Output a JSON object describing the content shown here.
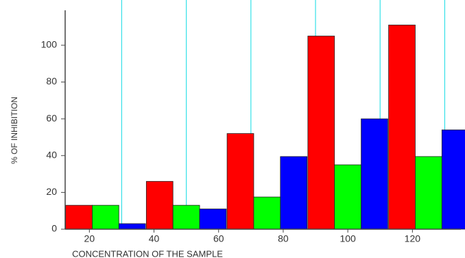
{
  "chart_data": {
    "type": "bar",
    "y_label": "% OF INHIBITION",
    "x_label": "CONCENTRATION OF THE SAMPLE",
    "x": [
      25,
      50,
      75,
      100,
      125
    ],
    "series": [
      {
        "color": "#ff0000",
        "values": [
          13,
          26,
          52,
          105,
          111
        ]
      },
      {
        "color": "#00ff00",
        "values": [
          13,
          13,
          17.5,
          35,
          39.5
        ]
      },
      {
        "color": "#0000ff",
        "values": [
          3,
          11,
          39.5,
          60,
          54
        ]
      }
    ],
    "xlim": [
      12.5,
      135
    ],
    "xticks": [
      20,
      40,
      60,
      80,
      100,
      120
    ],
    "vlines": [
      30,
      50,
      70,
      90,
      110,
      130
    ],
    "vline_color": "#33e0e8",
    "ylim": [
      0,
      119
    ],
    "yticks": [
      0,
      20,
      40,
      60,
      80,
      100
    ]
  }
}
